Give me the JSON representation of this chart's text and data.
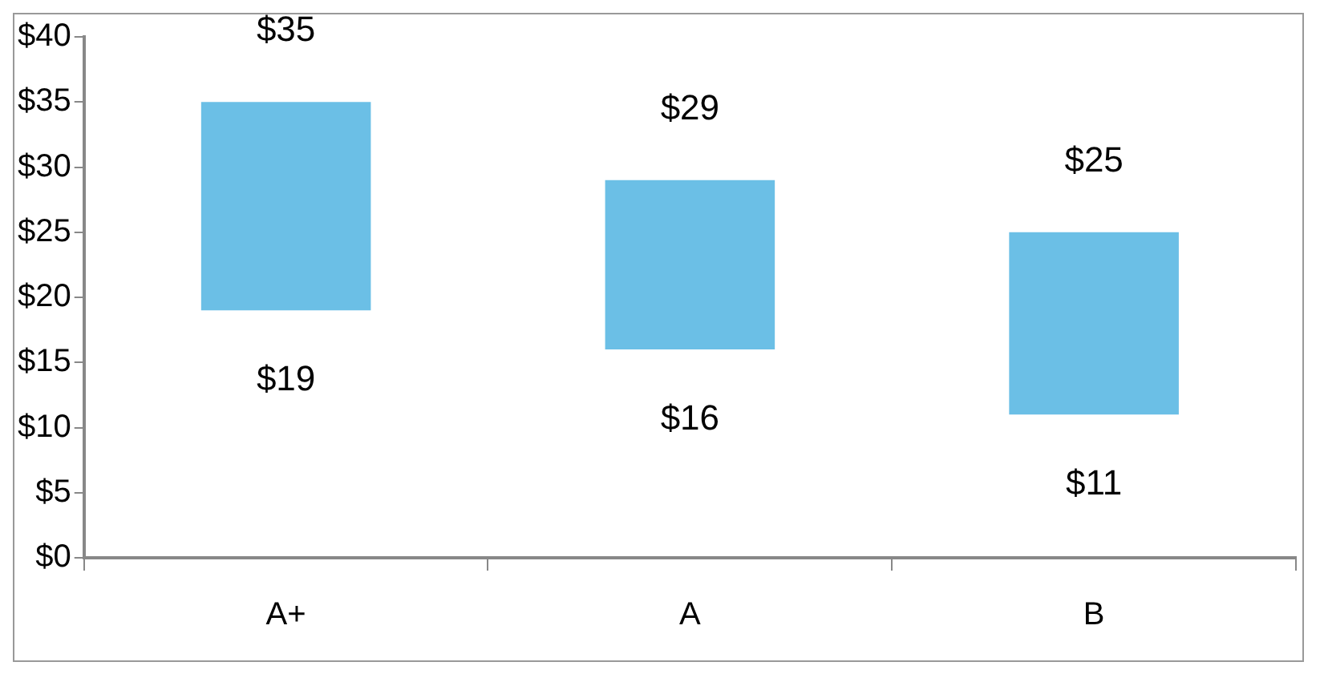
{
  "chart_data": {
    "type": "bar",
    "categories": [
      "A+",
      "A",
      "B"
    ],
    "values": [
      16,
      13,
      14
    ],
    "base": [
      19,
      16,
      11
    ],
    "color": "#6bbfe6",
    "ylim": [
      0,
      40
    ],
    "yticks": [
      {
        "value": 0,
        "label": "$0"
      },
      {
        "value": 5,
        "label": "$5"
      },
      {
        "value": 10,
        "label": "$10"
      },
      {
        "value": 15,
        "label": "$15"
      },
      {
        "value": 20,
        "label": "$20"
      },
      {
        "value": 25,
        "label": "$25"
      },
      {
        "value": 30,
        "label": "$30"
      },
      {
        "value": 35,
        "label": "$35"
      },
      {
        "value": 40,
        "label": "$40"
      }
    ],
    "grid": false,
    "legend": false,
    "annotations": [
      {
        "text": "$35",
        "x": "A+",
        "y": 35
      },
      {
        "text": "$19",
        "x": "A+",
        "y": 19
      },
      {
        "text": "$29",
        "x": "A",
        "y": 29
      },
      {
        "text": "$16",
        "x": "A",
        "y": 16
      },
      {
        "text": "$25",
        "x": "B",
        "y": 25
      },
      {
        "text": "$11",
        "x": "B",
        "y": 11
      }
    ]
  }
}
